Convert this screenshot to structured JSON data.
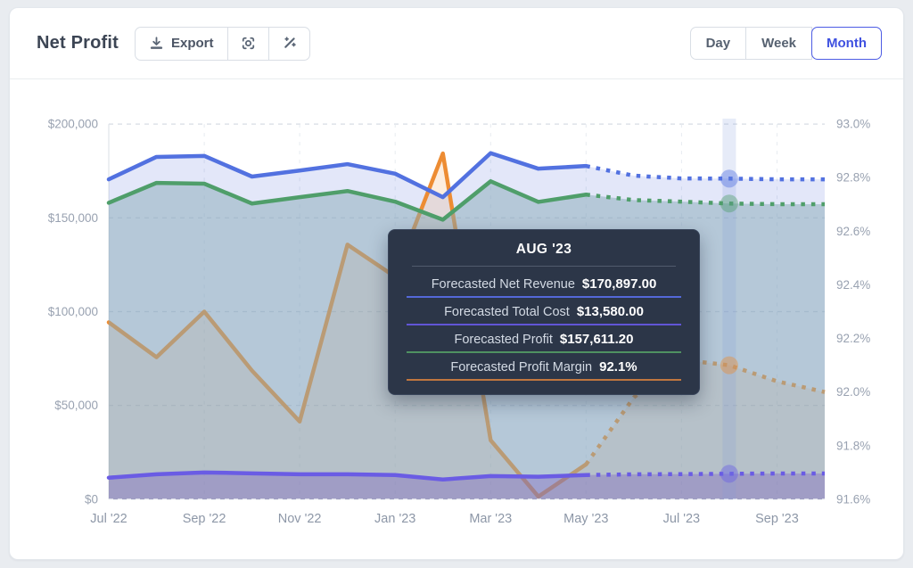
{
  "header": {
    "title": "Net Profit",
    "export_label": "Export",
    "range_options": [
      "Day",
      "Week",
      "Month"
    ],
    "active_range": "Month"
  },
  "tooltip": {
    "title": "AUG '23",
    "rows": [
      {
        "label": "Forecasted Net Revenue",
        "value": "$170,897.00",
        "color": "#5468d8"
      },
      {
        "label": "Forecasted Total Cost",
        "value": "$13,580.00",
        "color": "#6155d6"
      },
      {
        "label": "Forecasted Profit",
        "value": "$157,611.20",
        "color": "#4f9161"
      },
      {
        "label": "Forecasted Profit Margin",
        "value": "92.1%",
        "color": "#c0763f"
      }
    ]
  },
  "chart_data": {
    "type": "line",
    "title": "Net Profit",
    "x": [
      "Jul '22",
      "Aug '22",
      "Sep '22",
      "Oct '22",
      "Nov '22",
      "Dec '22",
      "Jan '23",
      "Feb '23",
      "Mar '23",
      "Apr '23",
      "May '23",
      "Jun '23",
      "Jul '23",
      "Aug '23",
      "Sep '23",
      "Oct '23"
    ],
    "x_ticks": [
      {
        "index": 0,
        "label": "Jul '22"
      },
      {
        "index": 2,
        "label": "Sep '22"
      },
      {
        "index": 4,
        "label": "Nov '22"
      },
      {
        "index": 6,
        "label": "Jan '23"
      },
      {
        "index": 8,
        "label": "Mar '23"
      },
      {
        "index": 10,
        "label": "May '23"
      },
      {
        "index": 12,
        "label": "Jul '23"
      },
      {
        "index": 14,
        "label": "Sep '23"
      }
    ],
    "left_axis": {
      "min": 0,
      "max": 200000,
      "tick_values": [
        200000,
        150000,
        100000,
        50000,
        0
      ],
      "tick_labels": [
        "$200,000",
        "$150,000",
        "$100,000",
        "$50,000",
        "$0"
      ]
    },
    "right_axis": {
      "min": 91.6,
      "max": 93.0,
      "tick_values": [
        93.0,
        92.8,
        92.6,
        92.4,
        92.2,
        92.0,
        91.8,
        91.6
      ],
      "tick_labels": [
        "93.0%",
        "92.8%",
        "92.6%",
        "92.4%",
        "92.2%",
        "92.0%",
        "91.8%",
        "91.6%"
      ]
    },
    "forecast_start_index": 10,
    "highlight_index": 13,
    "grid": true,
    "legend_position": "none",
    "series": [
      {
        "name": "Net Revenue",
        "axis": "left",
        "color": "#5271e0",
        "fill": "rgba(99,122,224,0.18)",
        "values": [
          170500,
          182500,
          183000,
          172000,
          175200,
          178600,
          173500,
          161000,
          184500,
          176200,
          177600,
          172500,
          171000,
          170897,
          170500,
          170500
        ]
      },
      {
        "name": "Profit",
        "axis": "left",
        "color": "#4f9e6a",
        "fill": "rgba(136,170,184,0.5)",
        "values": [
          158000,
          168600,
          168200,
          157600,
          161000,
          164300,
          158600,
          149000,
          169500,
          158500,
          162400,
          159500,
          158600,
          157611,
          157300,
          157300
        ]
      },
      {
        "name": "Total Cost",
        "axis": "left",
        "color": "#6a5ce4",
        "fill": "rgba(115,80,190,0.32)",
        "values": [
          11500,
          13300,
          14300,
          13800,
          13300,
          13300,
          12900,
          10500,
          12400,
          12000,
          12900,
          13300,
          13400,
          13580,
          13700,
          13700
        ]
      },
      {
        "name": "Profit Margin",
        "axis": "right",
        "color": "#ed8c33",
        "fill": "rgba(236,140,56,0.16)",
        "values": [
          92.26,
          92.13,
          92.3,
          92.08,
          91.89,
          92.55,
          92.43,
          92.89,
          91.82,
          91.61,
          91.73,
          91.98,
          92.12,
          92.1,
          92.04,
          92.0
        ]
      }
    ]
  }
}
